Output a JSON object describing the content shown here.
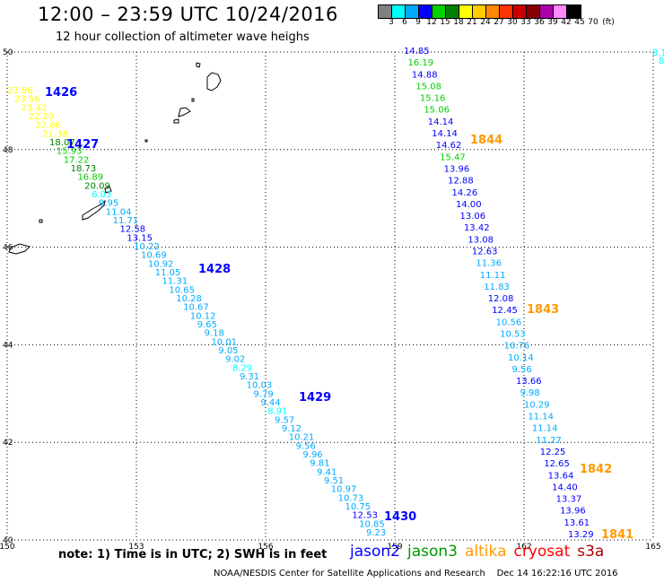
{
  "header": {
    "title": "12:00 – 23:59 UTC 10/24/2016",
    "subtitle": "12 hour collection of altimeter wave heighs"
  },
  "colorbar": {
    "colors": [
      "#808080",
      "#00ffff",
      "#00aaff",
      "#0000ff",
      "#00d000",
      "#008000",
      "#ffff00",
      "#ffcc00",
      "#ff8800",
      "#ff3300",
      "#cc0000",
      "#880000",
      "#aa00aa",
      "#ff88ff",
      "#000000"
    ],
    "labels": [
      "3",
      "6",
      "9",
      "12",
      "15",
      "18",
      "21",
      "24",
      "27",
      "30",
      "33",
      "36",
      "39",
      "42",
      "45",
      "70",
      "(ft)"
    ]
  },
  "map": {
    "lat_labels": [
      "50",
      "48",
      "46",
      "44",
      "42",
      "40"
    ],
    "lon_labels": [
      "150",
      "153",
      "156",
      "159",
      "162",
      "165"
    ],
    "lat_range": [
      40,
      50
    ],
    "lon_range": [
      150,
      165
    ],
    "grid": "dotted"
  },
  "pass_labels": [
    {
      "text": "1426",
      "sat": "jason2"
    },
    {
      "text": "1427",
      "sat": "jason2"
    },
    {
      "text": "1428",
      "sat": "jason2"
    },
    {
      "text": "1429",
      "sat": "jason2"
    },
    {
      "text": "1430",
      "sat": "jason2"
    },
    {
      "text": "1844",
      "sat": "altika"
    },
    {
      "text": "1843",
      "sat": "altika"
    },
    {
      "text": "1842",
      "sat": "altika"
    },
    {
      "text": "1841",
      "sat": "altika"
    }
  ],
  "track1_wave_heights": [
    "23.96",
    "23.56",
    "23.42",
    "22.20",
    "22.86",
    "21.38",
    "18.07",
    "15.93",
    "17.22",
    "18.73",
    "16.89",
    "20.09",
    "6.03",
    "9.95",
    "11.04",
    "11.71",
    "12.58",
    "13.15",
    "10.22",
    "10.69",
    "10.92",
    "11.05",
    "11.31",
    "10.65",
    "10.28",
    "10.67",
    "10.12",
    "9.65",
    "9.18",
    "10.01",
    "9.05",
    "9.02",
    "8.29",
    "9.31",
    "10.03",
    "9.79",
    "9.44",
    "8.91",
    "9.57",
    "9.12",
    "10.21",
    "9.56",
    "9.96",
    "9.81",
    "9.41",
    "9.51",
    "10.97",
    "10.73",
    "10.75",
    "12.53",
    "10.85",
    "9.23"
  ],
  "track2_wave_heights": [
    "14.85",
    "16.19",
    "14.88",
    "15.08",
    "15.16",
    "15.06",
    "14.14",
    "14.14",
    "14.62",
    "15.47",
    "13.96",
    "12.88",
    "14.26",
    "14.00",
    "13.06",
    "13.42",
    "13.08",
    "12.63",
    "11.36",
    "11.11",
    "11.83",
    "12.08",
    "12.45",
    "10.56",
    "10.53",
    "10.76",
    "10.14",
    "9.56",
    "13.66",
    "9.98",
    "10.29",
    "11.14",
    "11.14",
    "11.27",
    "12.25",
    "12.65",
    "13.64",
    "14.40",
    "13.37",
    "13.96",
    "13.61",
    "13.29"
  ],
  "edge_values": [
    "8.1",
    "8"
  ],
  "notes": "note: 1) Time is in UTC; 2) SWH is in feet",
  "satellites": [
    {
      "name": "jason2",
      "color": "#0000ff"
    },
    {
      "name": "jason3",
      "color": "#009900"
    },
    {
      "name": "altika",
      "color": "#ff9900"
    },
    {
      "name": "cryosat",
      "color": "#ff0000"
    },
    {
      "name": "s3a",
      "color": "#aa0000"
    }
  ],
  "credit": "NOAA/NESDIS Center for Satellite Applications and Research    Dec 14 16:22:16 UTC 2016"
}
